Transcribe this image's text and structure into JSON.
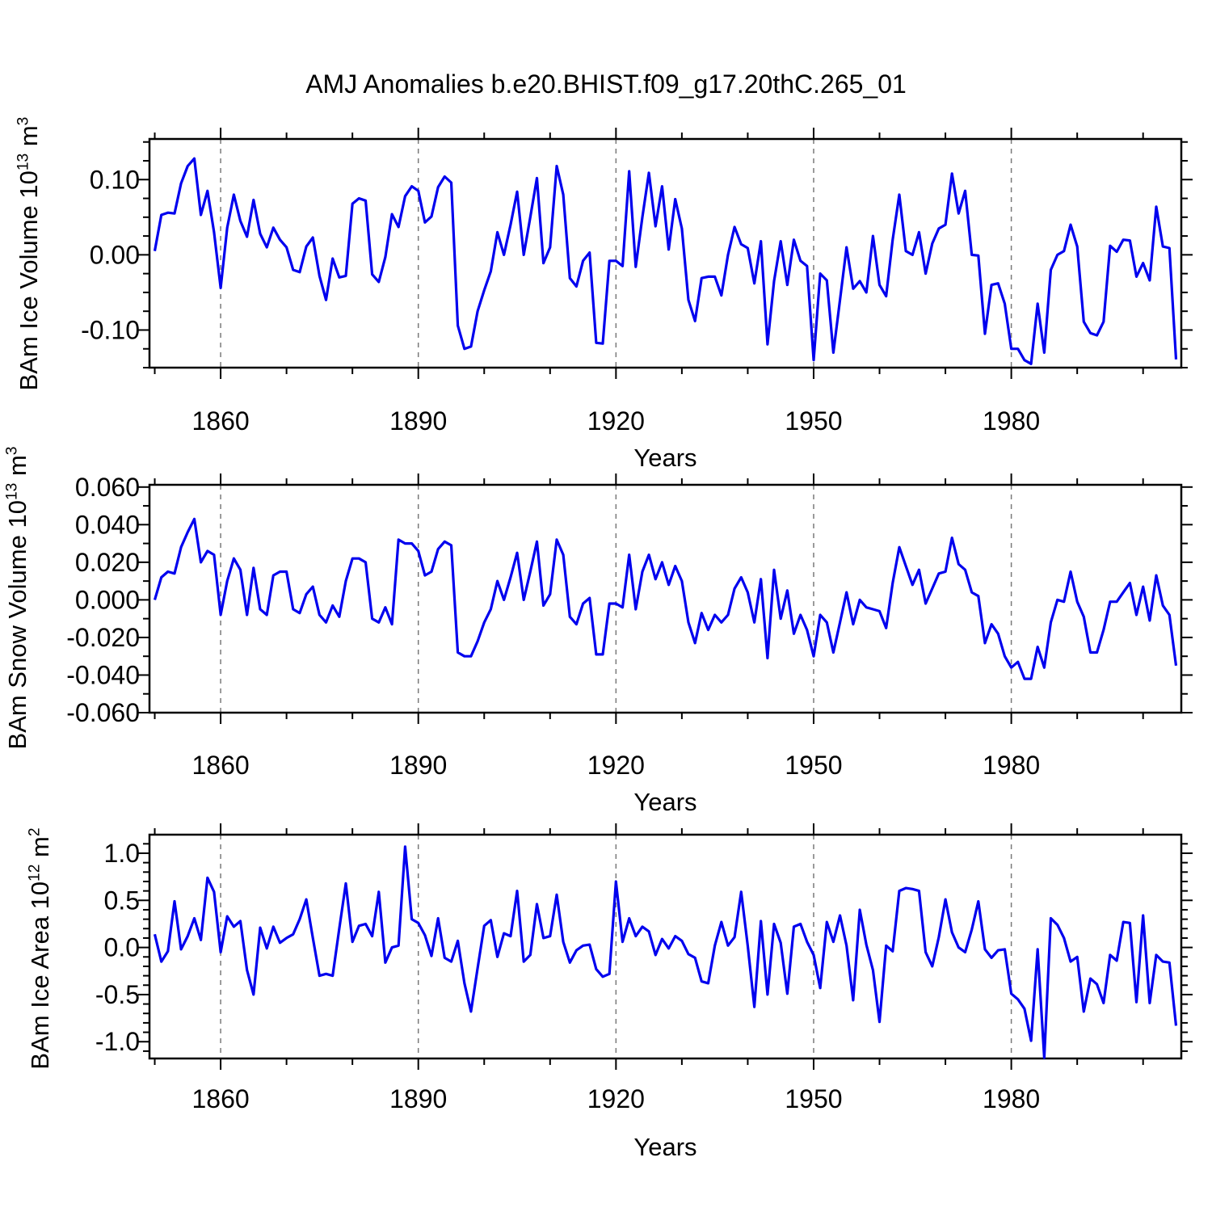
{
  "title": "AMJ Anomalies b.e20.BHIST.f09_g17.20thC.265_01",
  "line_color": "#0000EE",
  "gridline_color": "#7a7a7a",
  "frame_color": "#000000",
  "chart_data": [
    {
      "type": "line",
      "name": "bam-ice-volume-anomaly",
      "ylabel_base": "BAm Ice Volume 10",
      "ylabel_exp": "13",
      "ylabel_unit": " m",
      "ylabel_unit_exp": "3",
      "xlabel": "Years",
      "x_start": 1850,
      "x_step": 1,
      "xlim": [
        1849.2,
        2005.8
      ],
      "ylim": [
        -0.15,
        0.154
      ],
      "xticks_major": [
        1860,
        1890,
        1920,
        1950,
        1980
      ],
      "xtick_labels": [
        "1860",
        "1890",
        "1920",
        "1950",
        "1980"
      ],
      "xticks_minor": [
        1850,
        1870,
        1880,
        1900,
        1910,
        1930,
        1940,
        1960,
        1970,
        1990,
        2000
      ],
      "yticks_major": [
        0.1,
        0.0,
        -0.1
      ],
      "ytick_labels": [
        "0.10",
        "0.00",
        "-0.10"
      ],
      "yticks_minor": [
        -0.15,
        -0.125,
        -0.075,
        -0.05,
        -0.025,
        0.025,
        0.05,
        0.075,
        0.125,
        0.15
      ],
      "grid_vertical_dashed_at": [
        1860,
        1890,
        1920,
        1950,
        1980
      ],
      "values": [
        0.005,
        0.053,
        0.056,
        0.055,
        0.095,
        0.118,
        0.128,
        0.053,
        0.085,
        0.03,
        -0.044,
        0.036,
        0.08,
        0.045,
        0.024,
        0.073,
        0.028,
        0.01,
        0.036,
        0.02,
        0.01,
        -0.02,
        -0.023,
        0.011,
        0.023,
        -0.028,
        -0.06,
        -0.005,
        -0.03,
        -0.028,
        0.068,
        0.075,
        0.072,
        -0.026,
        -0.036,
        -0.003,
        0.054,
        0.037,
        0.078,
        0.091,
        0.085,
        0.043,
        0.051,
        0.09,
        0.104,
        0.096,
        -0.094,
        -0.125,
        -0.122,
        -0.075,
        -0.047,
        -0.022,
        0.03,
        0.0,
        0.04,
        0.084,
        0.0,
        0.05,
        0.102,
        -0.011,
        0.01,
        0.118,
        0.08,
        -0.031,
        -0.042,
        -0.008,
        0.003,
        -0.117,
        -0.118,
        -0.008,
        -0.008,
        -0.015,
        0.111,
        -0.016,
        0.05,
        0.109,
        0.038,
        0.091,
        0.007,
        0.074,
        0.035,
        -0.06,
        -0.088,
        -0.031,
        -0.029,
        -0.029,
        -0.054,
        0.0,
        0.037,
        0.014,
        0.009,
        -0.038,
        0.018,
        -0.119,
        -0.035,
        0.018,
        -0.04,
        0.02,
        -0.008,
        -0.015,
        -0.14,
        -0.025,
        -0.034,
        -0.13,
        -0.06,
        0.01,
        -0.045,
        -0.035,
        -0.05,
        0.025,
        -0.04,
        -0.055,
        0.02,
        0.08,
        0.005,
        0.0,
        0.03,
        -0.025,
        0.015,
        0.035,
        0.04,
        0.108,
        0.055,
        0.085,
        0.0,
        -0.001,
        -0.105,
        -0.04,
        -0.038,
        -0.065,
        -0.125,
        -0.125,
        -0.14,
        -0.145,
        -0.065,
        -0.13,
        -0.02,
        0.0,
        0.005,
        0.04,
        0.011,
        -0.089,
        -0.104,
        -0.107,
        -0.089,
        0.012,
        0.004,
        0.02,
        0.019,
        -0.029,
        -0.011,
        -0.034,
        0.064,
        0.011,
        0.009,
        -0.139
      ]
    },
    {
      "type": "line",
      "name": "bam-snow-volume-anomaly",
      "ylabel_base": "BAm Snow Volume 10",
      "ylabel_exp": "13",
      "ylabel_unit": " m",
      "ylabel_unit_exp": "3",
      "xlabel": "Years",
      "x_start": 1850,
      "x_step": 1,
      "xlim": [
        1849.2,
        2005.8
      ],
      "ylim": [
        -0.06,
        0.0612
      ],
      "xticks_major": [
        1860,
        1890,
        1920,
        1950,
        1980
      ],
      "xtick_labels": [
        "1860",
        "1890",
        "1920",
        "1950",
        "1980"
      ],
      "xticks_minor": [
        1850,
        1870,
        1880,
        1900,
        1910,
        1930,
        1940,
        1960,
        1970,
        1990,
        2000
      ],
      "yticks_major": [
        0.06,
        0.04,
        0.02,
        0.0,
        -0.02,
        -0.04,
        -0.06
      ],
      "ytick_labels": [
        "0.060",
        "0.040",
        "0.020",
        "0.000",
        "-0.020",
        "-0.040",
        "-0.060"
      ],
      "yticks_minor": [
        -0.05,
        -0.03,
        -0.01,
        0.01,
        0.03,
        0.05
      ],
      "grid_vertical_dashed_at": [
        1860,
        1890,
        1920,
        1950,
        1980
      ],
      "values": [
        0.0,
        0.012,
        0.015,
        0.014,
        0.028,
        0.036,
        0.043,
        0.02,
        0.026,
        0.024,
        -0.008,
        0.01,
        0.022,
        0.016,
        -0.008,
        0.017,
        -0.005,
        -0.008,
        0.013,
        0.015,
        0.015,
        -0.005,
        -0.007,
        0.003,
        0.007,
        -0.008,
        -0.012,
        -0.003,
        -0.009,
        0.01,
        0.022,
        0.022,
        0.02,
        -0.01,
        -0.012,
        -0.004,
        -0.013,
        0.032,
        0.03,
        0.03,
        0.026,
        0.013,
        0.015,
        0.027,
        0.031,
        0.029,
        -0.028,
        -0.03,
        -0.03,
        -0.022,
        -0.012,
        -0.005,
        0.01,
        0.0,
        0.012,
        0.025,
        0.0,
        0.015,
        0.031,
        -0.003,
        0.003,
        0.032,
        0.024,
        -0.009,
        -0.013,
        -0.002,
        0.001,
        -0.029,
        -0.029,
        -0.002,
        -0.002,
        -0.004,
        0.024,
        -0.005,
        0.015,
        0.024,
        0.011,
        0.02,
        0.008,
        0.018,
        0.01,
        -0.012,
        -0.023,
        -0.007,
        -0.016,
        -0.008,
        -0.012,
        -0.008,
        0.006,
        0.012,
        0.004,
        -0.012,
        0.011,
        -0.031,
        0.016,
        -0.01,
        0.005,
        -0.018,
        -0.008,
        -0.016,
        -0.03,
        -0.008,
        -0.012,
        -0.028,
        -0.012,
        0.004,
        -0.013,
        0.0,
        -0.004,
        -0.005,
        -0.006,
        -0.015,
        0.009,
        0.028,
        0.018,
        0.008,
        0.016,
        -0.002,
        0.006,
        0.014,
        0.015,
        0.033,
        0.019,
        0.016,
        0.004,
        0.002,
        -0.023,
        -0.013,
        -0.018,
        -0.03,
        -0.036,
        -0.033,
        -0.042,
        -0.042,
        -0.025,
        -0.036,
        -0.012,
        0.0,
        -0.001,
        0.015,
        -0.001,
        -0.009,
        -0.028,
        -0.028,
        -0.016,
        -0.001,
        -0.001,
        0.004,
        0.009,
        -0.008,
        0.007,
        -0.011,
        0.013,
        -0.003,
        -0.008,
        -0.035
      ]
    },
    {
      "type": "line",
      "name": "bam-ice-area-anomaly",
      "ylabel_base": "BAm Ice Area 10",
      "ylabel_exp": "12",
      "ylabel_unit": " m",
      "ylabel_unit_exp": "2",
      "xlabel": "Years",
      "x_start": 1850,
      "x_step": 1,
      "xlim": [
        1849.2,
        2005.8
      ],
      "ylim": [
        -1.178,
        1.197
      ],
      "xticks_major": [
        1860,
        1890,
        1920,
        1950,
        1980
      ],
      "xtick_labels": [
        "1860",
        "1890",
        "1920",
        "1950",
        "1980"
      ],
      "xticks_minor": [
        1850,
        1870,
        1880,
        1900,
        1910,
        1930,
        1940,
        1960,
        1970,
        1990,
        2000
      ],
      "yticks_major": [
        1.0,
        0.5,
        0.0,
        -0.5,
        -1.0
      ],
      "ytick_labels": [
        "1.0",
        "0.5",
        "0.0",
        "-0.5",
        "-1.0"
      ],
      "yticks_minor": [
        -1.1,
        -0.9,
        -0.8,
        -0.7,
        -0.6,
        -0.4,
        -0.3,
        -0.2,
        -0.1,
        0.1,
        0.2,
        0.3,
        0.4,
        0.6,
        0.7,
        0.8,
        0.9,
        1.1
      ],
      "grid_vertical_dashed_at": [
        1860,
        1890,
        1920,
        1950,
        1980
      ],
      "values": [
        0.14,
        -0.15,
        -0.04,
        0.49,
        -0.02,
        0.12,
        0.31,
        0.08,
        0.74,
        0.59,
        -0.05,
        0.33,
        0.22,
        0.28,
        -0.24,
        -0.5,
        0.21,
        -0.01,
        0.22,
        0.05,
        0.1,
        0.14,
        0.3,
        0.51,
        0.1,
        -0.3,
        -0.28,
        -0.3,
        0.2,
        0.68,
        0.06,
        0.23,
        0.25,
        0.12,
        0.59,
        -0.16,
        0.0,
        0.02,
        1.07,
        0.3,
        0.26,
        0.13,
        -0.09,
        0.31,
        -0.11,
        -0.15,
        0.07,
        -0.38,
        -0.68,
        -0.22,
        0.23,
        0.29,
        -0.1,
        0.15,
        0.12,
        0.6,
        -0.15,
        -0.08,
        0.46,
        0.1,
        0.12,
        0.56,
        0.06,
        -0.16,
        -0.03,
        0.02,
        0.03,
        -0.23,
        -0.31,
        -0.28,
        0.7,
        0.06,
        0.31,
        0.12,
        0.22,
        0.17,
        -0.08,
        0.09,
        -0.01,
        0.12,
        0.07,
        -0.07,
        -0.11,
        -0.36,
        -0.38,
        0.02,
        0.27,
        0.02,
        0.11,
        0.59,
        0.02,
        -0.63,
        0.28,
        -0.5,
        0.25,
        0.05,
        -0.49,
        0.22,
        0.25,
        0.06,
        -0.08,
        -0.43,
        0.27,
        0.06,
        0.34,
        0.02,
        -0.56,
        0.4,
        0.03,
        -0.24,
        -0.79,
        0.02,
        -0.04,
        0.6,
        0.63,
        0.62,
        0.6,
        -0.05,
        -0.2,
        0.11,
        0.51,
        0.16,
        0.0,
        -0.05,
        0.19,
        0.49,
        -0.02,
        -0.11,
        -0.03,
        -0.02,
        -0.49,
        -0.55,
        -0.65,
        -0.99,
        -0.02,
        -1.17,
        0.31,
        0.24,
        0.1,
        -0.15,
        -0.1,
        -0.68,
        -0.33,
        -0.39,
        -0.59,
        -0.08,
        -0.14,
        0.27,
        0.26,
        -0.58,
        0.34,
        -0.59,
        -0.08,
        -0.15,
        -0.16,
        -0.83
      ]
    }
  ]
}
